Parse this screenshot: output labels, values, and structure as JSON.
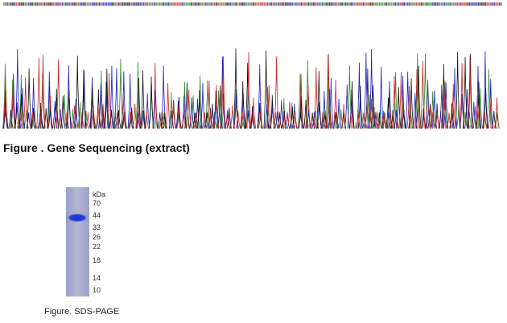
{
  "sequencing": {
    "caption": "Figure . Gene Sequencing (extract)"
  },
  "gel": {
    "unit": "kDa",
    "markers": [
      "70",
      "44",
      "33",
      "26",
      "22",
      "18",
      "14",
      "10"
    ],
    "caption": "Figure. SDS-PAGE"
  }
}
